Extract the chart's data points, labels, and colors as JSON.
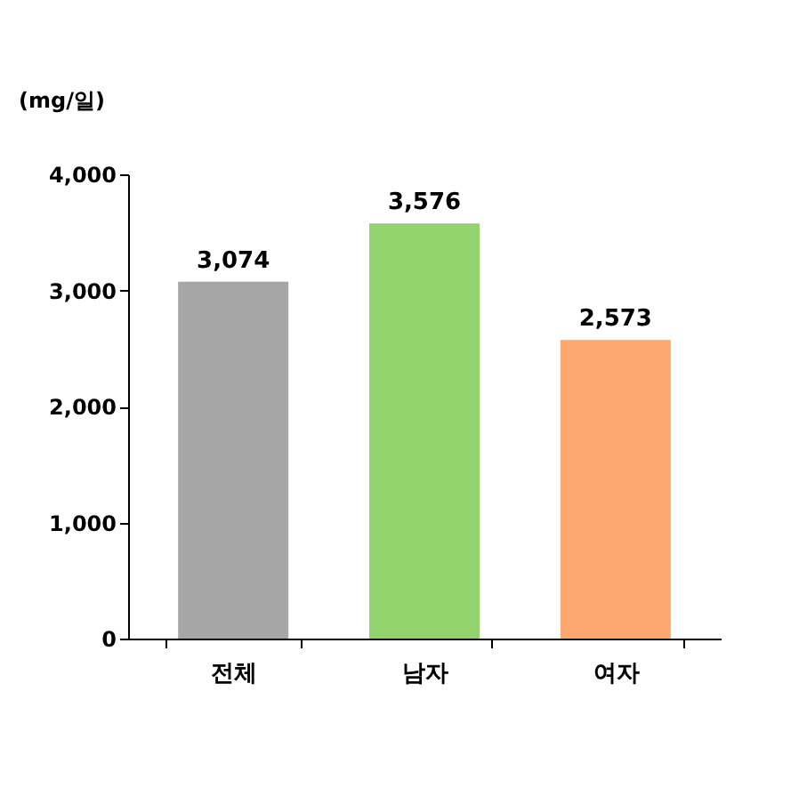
{
  "chart_data": {
    "type": "bar",
    "ylabel": "(mg/일)",
    "categories": [
      "전체",
      "남자",
      "여자"
    ],
    "values": [
      3074,
      3576,
      2573
    ],
    "colors": [
      "#a6a6a6",
      "#92d36e",
      "#fba76f"
    ],
    "ylim": [
      0,
      4000
    ],
    "yticks": [
      0,
      {
        "value": 1000,
        "label": "1,000"
      },
      {
        "value": 2000,
        "label": "2,000"
      },
      {
        "value": 3000,
        "label": "3,000"
      },
      {
        "value": 4000,
        "label": "4,000"
      }
    ],
    "value_labels": [
      "3,074",
      "3,576",
      "2,573"
    ],
    "grid": false
  }
}
